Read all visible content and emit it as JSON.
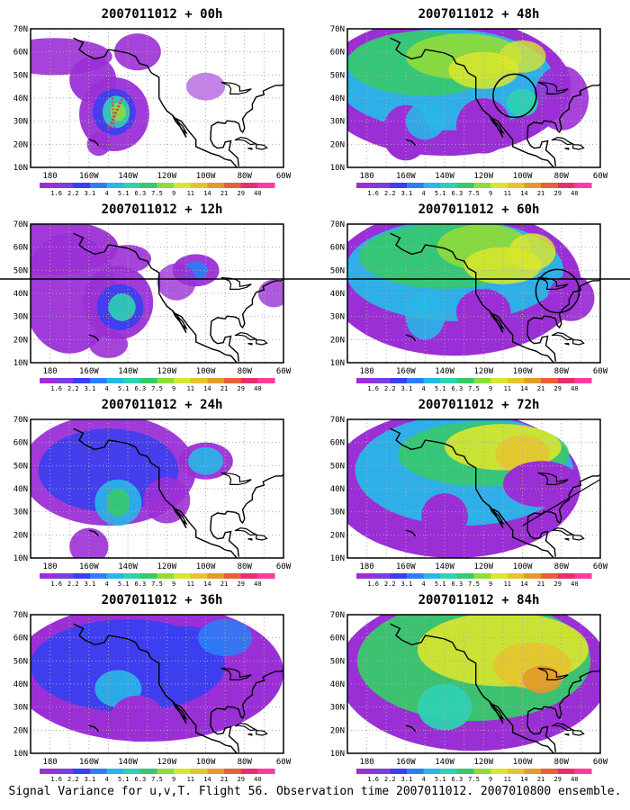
{
  "panels": [
    {
      "title": "2007011012 + 00h",
      "lead_hours": 0
    },
    {
      "title": "2007011012 + 48h",
      "lead_hours": 48
    },
    {
      "title": "2007011012 + 12h",
      "lead_hours": 12
    },
    {
      "title": "2007011012 + 60h",
      "lead_hours": 60
    },
    {
      "title": "2007011012 + 24h",
      "lead_hours": 24
    },
    {
      "title": "2007011012 + 72h",
      "lead_hours": 72
    },
    {
      "title": "2007011012 + 36h",
      "lead_hours": 36
    },
    {
      "title": "2007011012 + 84h",
      "lead_hours": 84
    }
  ],
  "lat_labels": [
    "70N",
    "60N",
    "50N",
    "40N",
    "30N",
    "20N",
    "10N"
  ],
  "lon_labels": [
    "180",
    "160W",
    "140W",
    "120W",
    "100W",
    "80W",
    "60W"
  ],
  "colorbar": {
    "labels": [
      "1.6",
      "2.2",
      "3.1",
      "4",
      "5.1",
      "6.3",
      "7.5",
      "9",
      "11",
      "14",
      "21",
      "29",
      "40"
    ],
    "colors": [
      "#9b2fd6",
      "#7a3ee0",
      "#3a3ff0",
      "#2f7df5",
      "#29b6e8",
      "#2ed1b0",
      "#37c96a",
      "#8fdc3a",
      "#d9e62f",
      "#e6c42f",
      "#e39a2a",
      "#e6603a",
      "#e6306e",
      "#ff3aa0"
    ]
  },
  "caption": "Signal Variance for u,v,T. Flight 56. Observation time 2007011012. 2007010800 ensemble."
}
